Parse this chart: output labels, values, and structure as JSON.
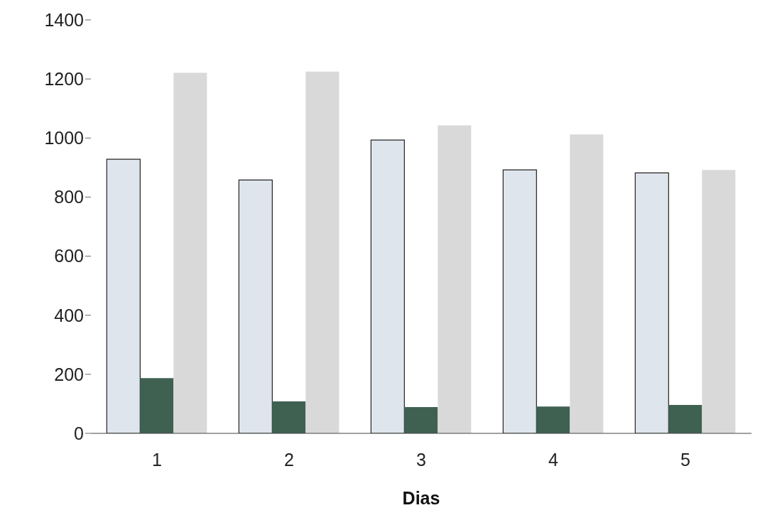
{
  "chart_data": {
    "type": "bar",
    "xlabel": "Dias",
    "categories": [
      "1",
      "2",
      "3",
      "4",
      "5"
    ],
    "series": [
      {
        "color": "#dfe5ec",
        "values": [
          928,
          858,
          993,
          892,
          882
        ]
      },
      {
        "color": "#3f6152",
        "values": [
          187,
          108,
          89,
          91,
          96
        ]
      },
      {
        "color": "#d9d9d9",
        "values": [
          1221,
          1225,
          1043,
          1012,
          892
        ]
      }
    ],
    "ylim": [
      0,
      1400
    ],
    "yticks": [
      0,
      200,
      400,
      600,
      800,
      1000,
      1200,
      1400
    ],
    "grid": false
  }
}
